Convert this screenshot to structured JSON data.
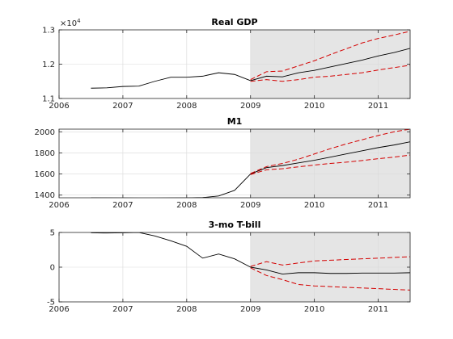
{
  "chart_data": [
    {
      "type": "line",
      "title": "Real GDP",
      "exponent_label": "×10",
      "exponent_power": "4",
      "xlim": [
        2006,
        2011.5
      ],
      "ylim": [
        1.1,
        1.3
      ],
      "xticks": [
        2006,
        2007,
        2008,
        2009,
        2010,
        2011
      ],
      "yticks": [
        1.1,
        1.2,
        1.3
      ],
      "ytick_labels": [
        "1.1",
        "1.2",
        "1.3"
      ],
      "grid": true,
      "forecast_shade_start": 2009,
      "line_color": "#000000",
      "band_color": "#d40000",
      "shade_color": "#e5e5e5",
      "series": [
        {
          "role": "observed",
          "x": [
            2006.5,
            2006.75,
            2007.0,
            2007.25,
            2007.5,
            2007.75,
            2008.0,
            2008.25,
            2008.5,
            2008.75,
            2009.0
          ],
          "y": [
            1.13,
            1.131,
            1.135,
            1.136,
            1.15,
            1.162,
            1.162,
            1.165,
            1.175,
            1.17,
            1.152
          ]
        },
        {
          "role": "forecast",
          "x": [
            2009.0,
            2009.25,
            2009.5,
            2009.75,
            2010.0,
            2010.25,
            2010.5,
            2010.75,
            2011.0,
            2011.25,
            2011.5
          ],
          "y": [
            1.152,
            1.165,
            1.163,
            1.175,
            1.182,
            1.192,
            1.202,
            1.212,
            1.224,
            1.234,
            1.246
          ]
        },
        {
          "role": "upper",
          "x": [
            2009.0,
            2009.25,
            2009.5,
            2009.75,
            2010.0,
            2010.25,
            2010.5,
            2010.75,
            2011.0,
            2011.25,
            2011.5
          ],
          "y": [
            1.155,
            1.178,
            1.18,
            1.195,
            1.21,
            1.228,
            1.245,
            1.262,
            1.275,
            1.285,
            1.296
          ]
        },
        {
          "role": "lower",
          "x": [
            2009.0,
            2009.25,
            2009.5,
            2009.75,
            2010.0,
            2010.25,
            2010.5,
            2010.75,
            2011.0,
            2011.25,
            2011.5
          ],
          "y": [
            1.15,
            1.155,
            1.15,
            1.155,
            1.162,
            1.165,
            1.17,
            1.175,
            1.183,
            1.19,
            1.197
          ]
        }
      ]
    },
    {
      "type": "line",
      "title": "M1",
      "xlim": [
        2006,
        2011.5
      ],
      "ylim": [
        1375,
        2025
      ],
      "xticks": [
        2006,
        2007,
        2008,
        2009,
        2010,
        2011
      ],
      "yticks": [
        1400,
        1600,
        1800,
        2000
      ],
      "ytick_labels": [
        "1400",
        "1600",
        "1800",
        "2000"
      ],
      "grid": true,
      "forecast_shade_start": 2009,
      "line_color": "#000000",
      "band_color": "#d40000",
      "shade_color": "#e5e5e5",
      "series": [
        {
          "role": "observed",
          "x": [
            2006.5,
            2006.75,
            2007.0,
            2007.25,
            2007.5,
            2007.75,
            2008.0,
            2008.25,
            2008.5,
            2008.75,
            2009.0
          ],
          "y": [
            1375,
            1374,
            1373,
            1372,
            1372,
            1373,
            1374,
            1377,
            1392,
            1445,
            1600
          ]
        },
        {
          "role": "forecast",
          "x": [
            2009.0,
            2009.25,
            2009.5,
            2009.75,
            2010.0,
            2010.25,
            2010.5,
            2010.75,
            2011.0,
            2011.25,
            2011.5
          ],
          "y": [
            1600,
            1660,
            1680,
            1705,
            1730,
            1760,
            1790,
            1820,
            1850,
            1875,
            1905
          ]
        },
        {
          "role": "upper",
          "x": [
            2009.0,
            2009.25,
            2009.5,
            2009.75,
            2010.0,
            2010.25,
            2010.5,
            2010.75,
            2011.0,
            2011.25,
            2011.5
          ],
          "y": [
            1605,
            1670,
            1700,
            1740,
            1790,
            1840,
            1885,
            1925,
            1965,
            2000,
            2025
          ]
        },
        {
          "role": "lower",
          "x": [
            2009.0,
            2009.25,
            2009.5,
            2009.75,
            2010.0,
            2010.25,
            2010.5,
            2010.75,
            2011.0,
            2011.25,
            2011.5
          ],
          "y": [
            1595,
            1640,
            1650,
            1668,
            1685,
            1700,
            1712,
            1728,
            1745,
            1760,
            1780
          ]
        }
      ]
    },
    {
      "type": "line",
      "title": "3-mo T-bill",
      "xlim": [
        2006,
        2011.5
      ],
      "ylim": [
        -5,
        5
      ],
      "xticks": [
        2006,
        2007,
        2008,
        2009,
        2010,
        2011
      ],
      "yticks": [
        -5,
        0,
        5
      ],
      "ytick_labels": [
        "-5",
        "0",
        "5"
      ],
      "grid": true,
      "forecast_shade_start": 2009,
      "line_color": "#000000",
      "band_color": "#d40000",
      "shade_color": "#e5e5e5",
      "series": [
        {
          "role": "observed",
          "x": [
            2006.5,
            2006.75,
            2007.0,
            2007.25,
            2007.5,
            2007.75,
            2008.0,
            2008.25,
            2008.5,
            2008.75,
            2009.0
          ],
          "y": [
            4.95,
            4.92,
            4.95,
            5.0,
            4.5,
            3.8,
            3.0,
            1.3,
            1.9,
            1.2,
            0.0
          ]
        },
        {
          "role": "forecast",
          "x": [
            2009.0,
            2009.25,
            2009.5,
            2009.75,
            2010.0,
            2010.25,
            2010.5,
            2010.75,
            2011.0,
            2011.25,
            2011.5
          ],
          "y": [
            0.0,
            -0.4,
            -1.0,
            -0.8,
            -0.8,
            -0.9,
            -0.9,
            -0.85,
            -0.85,
            -0.85,
            -0.8
          ]
        },
        {
          "role": "upper",
          "x": [
            2009.0,
            2009.25,
            2009.5,
            2009.75,
            2010.0,
            2010.25,
            2010.5,
            2010.75,
            2011.0,
            2011.25,
            2011.5
          ],
          "y": [
            0.1,
            0.8,
            0.3,
            0.6,
            0.9,
            1.0,
            1.1,
            1.2,
            1.3,
            1.4,
            1.5
          ]
        },
        {
          "role": "lower",
          "x": [
            2009.0,
            2009.25,
            2009.5,
            2009.75,
            2010.0,
            2010.25,
            2010.5,
            2010.75,
            2011.0,
            2011.25,
            2011.5
          ],
          "y": [
            -0.1,
            -1.2,
            -1.8,
            -2.5,
            -2.7,
            -2.8,
            -2.9,
            -3.0,
            -3.1,
            -3.2,
            -3.3
          ]
        }
      ]
    }
  ]
}
